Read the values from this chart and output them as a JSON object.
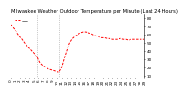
{
  "title": "Milwaukee Weather Outdoor Temperature per Minute (Last 24 Hours)",
  "line_color": "#ff0000",
  "line_style": "--",
  "line_width": 0.7,
  "bg_color": "#ffffff",
  "plot_bg_color": "#ffffff",
  "vline_color": "#999999",
  "vline_style": ":",
  "vline_positions": [
    0.2,
    0.36
  ],
  "yticks": [
    10,
    20,
    30,
    40,
    50,
    60,
    70,
    80
  ],
  "ylim": [
    8,
    85
  ],
  "xlim": [
    0,
    1
  ],
  "x": [
    0.0,
    0.017,
    0.033,
    0.05,
    0.067,
    0.083,
    0.1,
    0.117,
    0.133,
    0.15,
    0.167,
    0.183,
    0.2,
    0.21,
    0.22,
    0.24,
    0.26,
    0.28,
    0.3,
    0.32,
    0.34,
    0.36,
    0.38,
    0.4,
    0.42,
    0.44,
    0.46,
    0.48,
    0.5,
    0.52,
    0.54,
    0.56,
    0.58,
    0.6,
    0.62,
    0.64,
    0.66,
    0.68,
    0.7,
    0.72,
    0.74,
    0.76,
    0.78,
    0.8,
    0.82,
    0.84,
    0.86,
    0.88,
    0.9,
    0.92,
    0.94,
    0.96,
    0.98,
    1.0
  ],
  "y": [
    72,
    68,
    65,
    61,
    57,
    54,
    50,
    47,
    44,
    41,
    38,
    35,
    32,
    28,
    25,
    22,
    20,
    18,
    17,
    16,
    15,
    14,
    20,
    32,
    42,
    50,
    55,
    58,
    60,
    62,
    63,
    63,
    62,
    61,
    59,
    58,
    57,
    56,
    56,
    55,
    55,
    54,
    54,
    54,
    55,
    54,
    54,
    53,
    54,
    54,
    54,
    54,
    54,
    54
  ],
  "title_fontsize": 3.8,
  "tick_fontsize": 3.0,
  "legend_label": "—",
  "legend_color": "#ff0000",
  "legend_fontsize": 5.0,
  "num_xticks": 30
}
